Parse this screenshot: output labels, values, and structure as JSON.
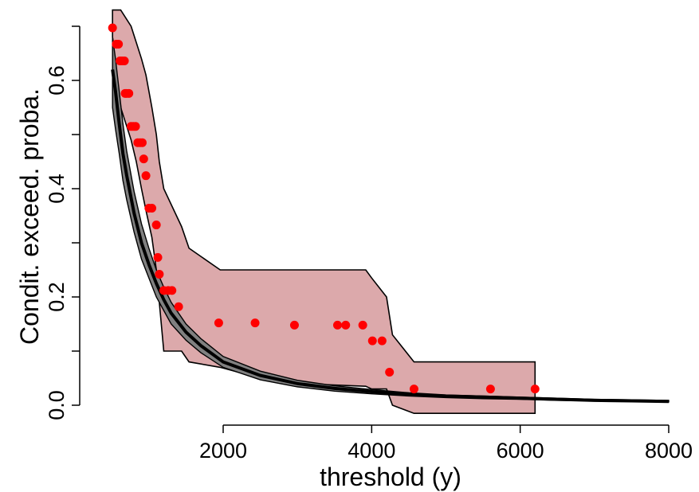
{
  "chart_data": {
    "type": "scatter",
    "xlabel": "threshold (y)",
    "ylabel": "Condit. exceed. proba.",
    "xlim": [
      0,
      8000
    ],
    "ylim": [
      0,
      0.7
    ],
    "x_ticks": [
      2000,
      4000,
      6000,
      8000
    ],
    "y_ticks": [
      0.0,
      0.2,
      0.4,
      0.6
    ],
    "y_ticks_minor": [
      0.1,
      0.3,
      0.5,
      0.7
    ],
    "grid": false,
    "colors": {
      "points": "#ff0000",
      "empirical_band_fill": "#dca9ab",
      "model_band_fill": "#808080",
      "model_line": "#000000"
    },
    "points": {
      "x": [
        510,
        560,
        590,
        610,
        640,
        670,
        680,
        700,
        730,
        760,
        790,
        820,
        850,
        880,
        910,
        930,
        960,
        1000,
        1040,
        1100,
        1120,
        1140,
        1200,
        1260,
        1310,
        1400,
        1940,
        2430,
        2960,
        3540,
        3650,
        3880,
        4010,
        4140,
        4240,
        4570,
        5600,
        6200
      ],
      "y": [
        0.697,
        0.667,
        0.667,
        0.636,
        0.636,
        0.636,
        0.576,
        0.576,
        0.576,
        0.515,
        0.515,
        0.515,
        0.485,
        0.485,
        0.485,
        0.455,
        0.424,
        0.364,
        0.364,
        0.333,
        0.273,
        0.242,
        0.212,
        0.212,
        0.212,
        0.182,
        0.152,
        0.152,
        0.148,
        0.148,
        0.148,
        0.148,
        0.119,
        0.119,
        0.061,
        0.03,
        0.03,
        0.03
      ]
    },
    "empirical_band": {
      "x": [
        510,
        560,
        620,
        760,
        830,
        900,
        960,
        1040,
        1100,
        1140,
        1200,
        1440,
        1540,
        1960,
        2500,
        3000,
        3920,
        4000,
        4200,
        4280,
        4570,
        4700,
        6200
      ],
      "upper": [
        0.73,
        0.73,
        0.73,
        0.7,
        0.67,
        0.64,
        0.61,
        0.55,
        0.5,
        0.45,
        0.4,
        0.33,
        0.29,
        0.25,
        0.25,
        0.25,
        0.25,
        0.235,
        0.2,
        0.13,
        0.08,
        0.08,
        0.08
      ],
      "lower": [
        0.68,
        0.62,
        0.55,
        0.49,
        0.45,
        0.4,
        0.36,
        0.31,
        0.25,
        0.19,
        0.1,
        0.1,
        0.08,
        0.07,
        0.05,
        0.04,
        0.035,
        0.03,
        0.03,
        0.0,
        -0.015,
        -0.015,
        -0.015
      ]
    },
    "model_curve": {
      "x": [
        510,
        550,
        600,
        650,
        700,
        800,
        900,
        1000,
        1100,
        1200,
        1300,
        1500,
        1700,
        2000,
        2500,
        3000,
        3500,
        4000,
        4500,
        5000,
        5500,
        6000,
        6500,
        7000,
        7500,
        8000
      ],
      "fit": [
        0.62,
        0.58,
        0.52,
        0.465,
        0.425,
        0.355,
        0.3,
        0.26,
        0.225,
        0.195,
        0.17,
        0.135,
        0.11,
        0.08,
        0.055,
        0.04,
        0.031,
        0.025,
        0.02,
        0.017,
        0.015,
        0.013,
        0.011,
        0.009,
        0.008,
        0.007
      ],
      "upper": [
        0.68,
        0.64,
        0.58,
        0.52,
        0.47,
        0.395,
        0.335,
        0.29,
        0.25,
        0.218,
        0.19,
        0.15,
        0.123,
        0.09,
        0.063,
        0.046,
        0.036,
        0.029,
        0.023,
        0.019,
        0.017,
        0.015,
        0.013,
        0.011,
        0.01,
        0.009
      ],
      "lower": [
        0.55,
        0.51,
        0.465,
        0.415,
        0.38,
        0.32,
        0.27,
        0.235,
        0.2,
        0.175,
        0.15,
        0.12,
        0.097,
        0.07,
        0.047,
        0.034,
        0.026,
        0.021,
        0.017,
        0.014,
        0.012,
        0.011,
        0.009,
        0.008,
        0.007,
        0.006
      ]
    }
  }
}
